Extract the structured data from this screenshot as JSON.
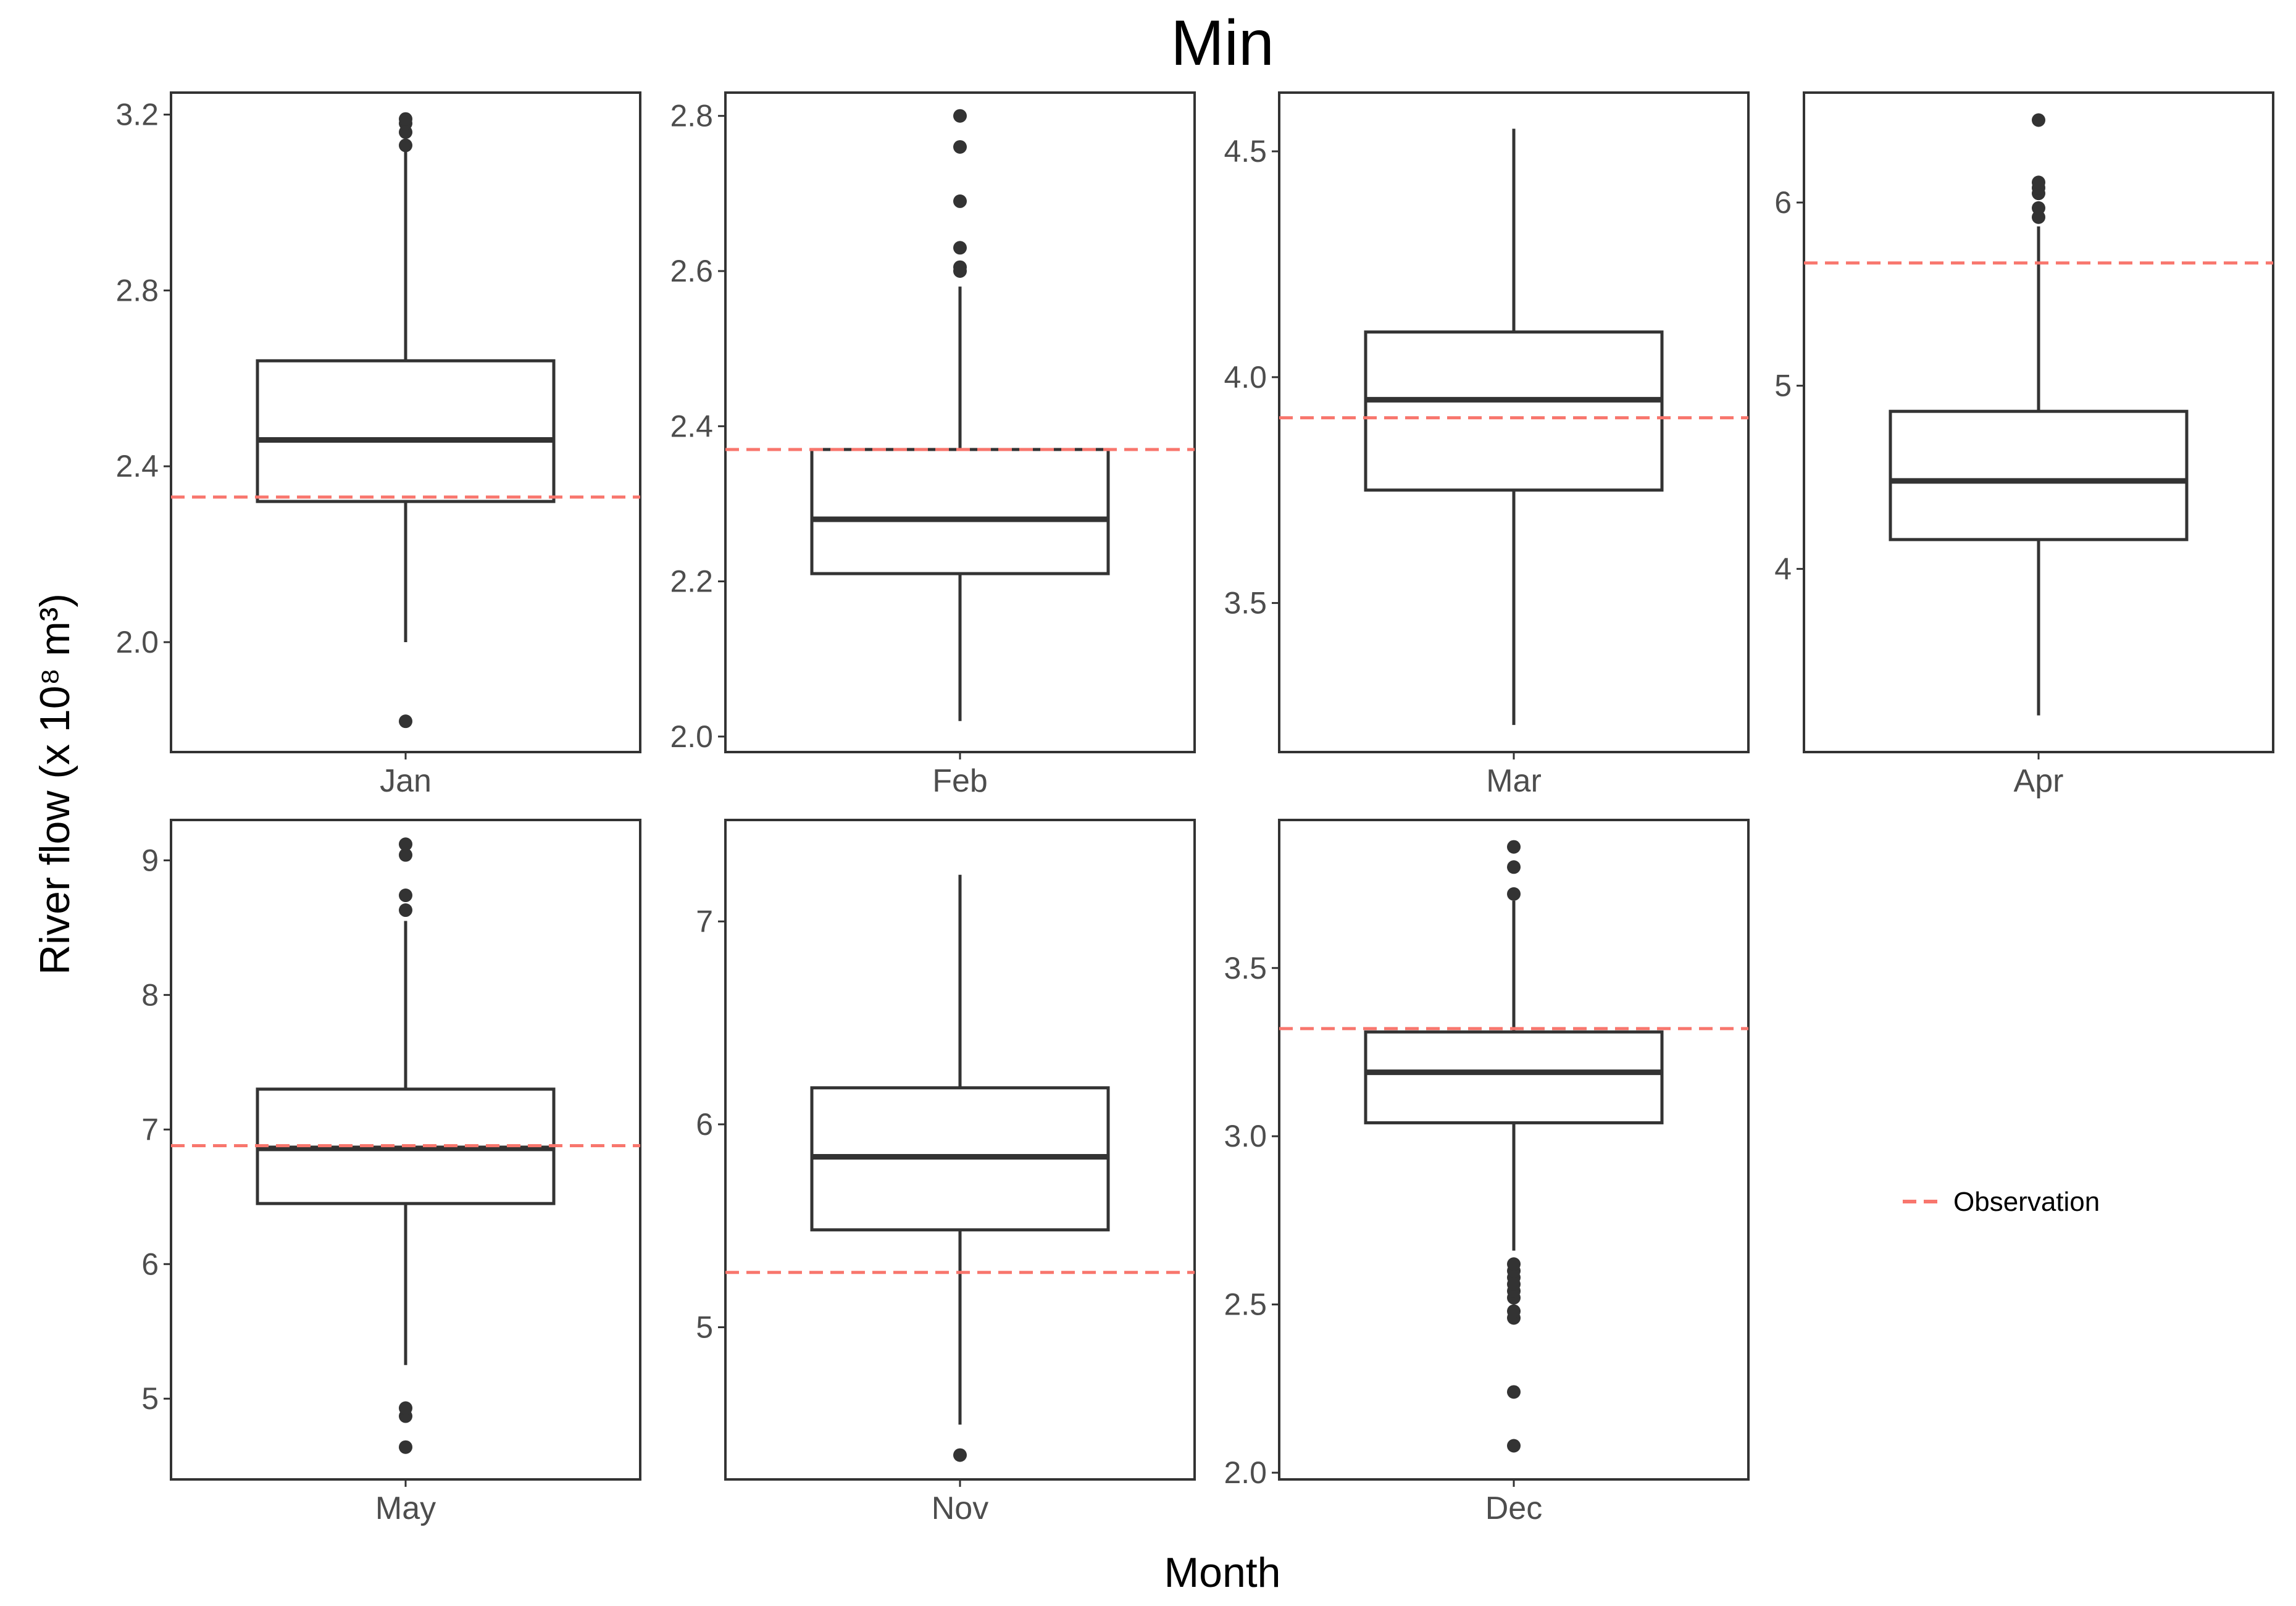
{
  "chart_data": {
    "type": "boxplot",
    "title": "Min",
    "xlabel": "Month",
    "ylabel": "River flow (x 10⁸ m³)",
    "legend": {
      "label": "Observation",
      "color": "#f8766d",
      "style": "dashed",
      "placement": "right"
    },
    "colors": {
      "box": "#333333",
      "frame": "#333333",
      "observation": "#f8766d",
      "tick_text": "#4d4d4d"
    },
    "panels": [
      {
        "month": "Jan",
        "ylim": [
          1.75,
          3.25
        ],
        "ticks": [
          2.0,
          2.4,
          2.8,
          3.2
        ],
        "tick_labels": [
          "2.0",
          "2.4",
          "2.8",
          "3.2"
        ],
        "q1": 2.32,
        "median": 2.46,
        "q3": 2.64,
        "whisker_low": 2.0,
        "whisker_high": 3.12,
        "outliers": [
          1.82,
          3.13,
          3.16,
          3.18,
          3.19
        ],
        "observation": 2.33
      },
      {
        "month": "Feb",
        "ylim": [
          1.98,
          2.83
        ],
        "ticks": [
          2.0,
          2.2,
          2.4,
          2.6,
          2.8
        ],
        "tick_labels": [
          "2.0",
          "2.2",
          "2.4",
          "2.6",
          "2.8"
        ],
        "q1": 2.21,
        "median": 2.28,
        "q3": 2.37,
        "whisker_low": 2.02,
        "whisker_high": 2.58,
        "outliers": [
          2.6,
          2.605,
          2.63,
          2.69,
          2.76,
          2.8
        ],
        "observation": 2.37
      },
      {
        "month": "Mar",
        "ylim": [
          3.17,
          4.63
        ],
        "ticks": [
          3.5,
          4.0,
          4.5
        ],
        "tick_labels": [
          "3.5",
          "4.0",
          "4.5"
        ],
        "q1": 3.75,
        "median": 3.95,
        "q3": 4.1,
        "whisker_low": 3.23,
        "whisker_high": 4.55,
        "outliers": [],
        "observation": 3.91
      },
      {
        "month": "Apr",
        "ylim": [
          3.0,
          6.6
        ],
        "ticks": [
          4,
          5,
          6
        ],
        "tick_labels": [
          "4",
          "5",
          "6"
        ],
        "q1": 4.16,
        "median": 4.48,
        "q3": 4.86,
        "whisker_low": 3.2,
        "whisker_high": 5.87,
        "outliers": [
          5.92,
          5.97,
          6.05,
          6.08,
          6.11,
          6.45
        ],
        "observation": 5.67
      },
      {
        "month": "May",
        "ylim": [
          4.4,
          9.3
        ],
        "ticks": [
          5,
          6,
          7,
          8,
          9
        ],
        "tick_labels": [
          "5",
          "6",
          "7",
          "8",
          "9"
        ],
        "q1": 6.45,
        "median": 6.86,
        "q3": 7.3,
        "whisker_low": 5.25,
        "whisker_high": 8.55,
        "outliers": [
          4.64,
          4.87,
          4.93,
          8.63,
          8.74,
          9.04,
          9.12
        ],
        "observation": 6.88
      },
      {
        "month": "Nov",
        "ylim": [
          4.25,
          7.5
        ],
        "ticks": [
          5,
          6,
          7
        ],
        "tick_labels": [
          "5",
          "6",
          "7"
        ],
        "q1": 5.48,
        "median": 5.84,
        "q3": 6.18,
        "whisker_low": 4.52,
        "whisker_high": 7.23,
        "outliers": [
          4.37
        ],
        "observation": 5.27
      },
      {
        "month": "Dec",
        "ylim": [
          1.98,
          3.94
        ],
        "ticks": [
          2.0,
          2.5,
          3.0,
          3.5
        ],
        "tick_labels": [
          "2.0",
          "2.5",
          "3.0",
          "3.5"
        ],
        "q1": 3.04,
        "median": 3.19,
        "q3": 3.31,
        "whisker_low": 2.66,
        "whisker_high": 3.7,
        "outliers": [
          2.08,
          2.24,
          2.46,
          2.48,
          2.52,
          2.54,
          2.56,
          2.58,
          2.6,
          2.62,
          3.72,
          3.8,
          3.86
        ],
        "observation": 3.32
      }
    ]
  }
}
